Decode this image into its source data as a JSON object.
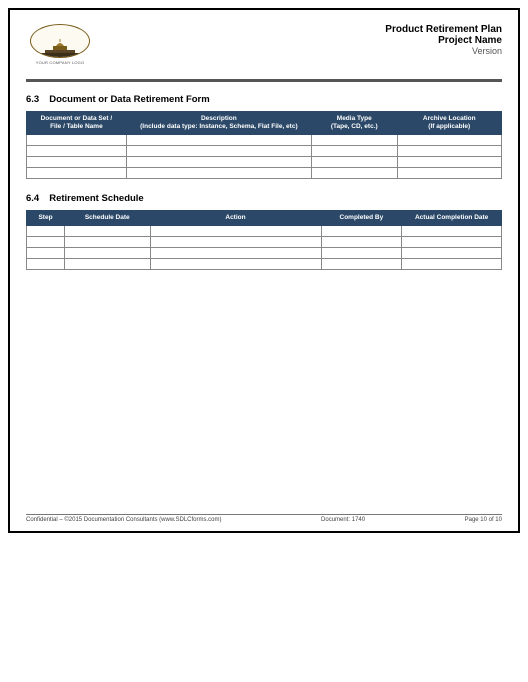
{
  "header": {
    "logo_tag": "YOUR COMPANY LOGO",
    "title1": "Product Retirement Plan",
    "title2": "Project Name",
    "title3": "Version"
  },
  "section63": {
    "number": "6.3",
    "title": "Document or Data Retirement Form",
    "columns": [
      "Document or Data Set /\nFile / Table Name",
      "Description\n(Include data type: Instance, Schema, Flat File, etc)",
      "Media Type\n(Tape, CD, etc.)",
      "Archive Location\n(If applicable)"
    ],
    "col_widths": [
      "21%",
      "39%",
      "18%",
      "22%"
    ],
    "rows": [
      [
        "",
        "",
        "",
        ""
      ],
      [
        "",
        "",
        "",
        ""
      ],
      [
        "",
        "",
        "",
        ""
      ],
      [
        "",
        "",
        "",
        ""
      ]
    ]
  },
  "section64": {
    "number": "6.4",
    "title": "Retirement Schedule",
    "columns": [
      "Step",
      "Schedule Date",
      "Action",
      "Completed By",
      "Actual Completion Date"
    ],
    "col_widths": [
      "8%",
      "18%",
      "36%",
      "17%",
      "21%"
    ],
    "rows": [
      [
        "",
        "",
        "",
        "",
        ""
      ],
      [
        "",
        "",
        "",
        "",
        ""
      ],
      [
        "",
        "",
        "",
        "",
        ""
      ],
      [
        "",
        "",
        "",
        "",
        ""
      ]
    ]
  },
  "footer": {
    "left": "Confidential – ©2015 Documentation Consultants (www.SDLCforms.com)",
    "center": "Document: 1740",
    "right": "Page 10 of 10"
  },
  "colors": {
    "table_header_bg": "#2b4868",
    "hr": "#555"
  }
}
